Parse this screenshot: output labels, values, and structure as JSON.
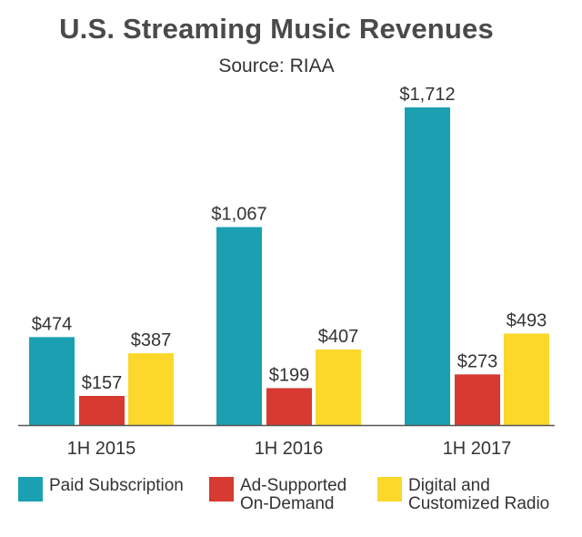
{
  "chart_data": {
    "type": "bar",
    "title": "U.S. Streaming Music Revenues",
    "subtitle": "Source: RIAA",
    "xlabel": "",
    "ylabel": "",
    "categories": [
      "1H 2015",
      "1H 2016",
      "1H 2017"
    ],
    "series": [
      {
        "name": "Paid Subscription",
        "color": "#1aa0b0",
        "values": [
          474,
          1067,
          1712
        ],
        "labels": [
          "$474",
          "$1,067",
          "$1,712"
        ]
      },
      {
        "name": "Ad-Supported\nOn-Demand",
        "color": "#d73a30",
        "values": [
          157,
          199,
          273
        ],
        "labels": [
          "$157",
          "$199",
          "$273"
        ]
      },
      {
        "name": "Digital and\nCustomized Radio",
        "color": "#fbd82a",
        "values": [
          387,
          407,
          493
        ],
        "labels": [
          "$387",
          "$407",
          "$493"
        ]
      }
    ],
    "ylim": [
      0,
      1712
    ],
    "grid": false,
    "legend": "bottom"
  }
}
